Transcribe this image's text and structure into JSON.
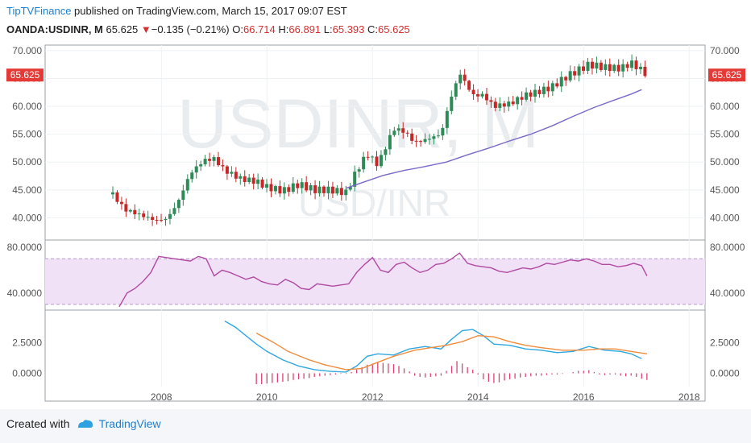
{
  "header": {
    "brand": "TipTVFinance",
    "published": " published on TradingView.com, March 15, 2017 09:07 EST",
    "symbol": "OANDA:USDINR, M",
    "price": "65.625",
    "arrow": "▼",
    "change": "−0.135 (−0.21%)",
    "o_label": "O:",
    "o_val": "66.714",
    "h_label": "H:",
    "h_val": "66.891",
    "l_label": "L:",
    "l_val": "65.393",
    "c_label": "C:",
    "c_val": "65.625"
  },
  "watermark": {
    "big": "USDINR, M",
    "small": "USD/INR"
  },
  "footer": {
    "created": "Created with",
    "brand": "TradingView"
  },
  "colors": {
    "up": "#2e8b57",
    "down": "#c62828",
    "ma": "#7b68c8",
    "rsi": "#b04aa0",
    "macd": "#2fa8e0",
    "signal": "#f08c3c",
    "hist": "#e04070",
    "price_tag": "#e53935"
  },
  "chart_data": [
    {
      "type": "candlestick",
      "title": "",
      "ylim": [
        36.0,
        71.0
      ],
      "y_ticks": [
        "70.000",
        "65.000",
        "60.000",
        "55.000",
        "50.000",
        "45.000",
        "40.000"
      ],
      "y_tick_values": [
        70,
        65,
        60,
        55,
        50,
        45,
        40
      ],
      "x_ticks": [
        "2008",
        "2010",
        "2012",
        "2014",
        "2016",
        "2018"
      ],
      "x_tick_values": [
        2008,
        2010,
        2012,
        2014,
        2016,
        2018
      ],
      "last_price_label": "65.625",
      "last_price": 65.625,
      "candle_anchors": [
        [
          2007.08,
          44.2
        ],
        [
          2007.3,
          41.5
        ],
        [
          2007.6,
          40.5
        ],
        [
          2007.9,
          39.5
        ],
        [
          2008.1,
          39.8
        ],
        [
          2008.3,
          42.5
        ],
        [
          2008.55,
          48
        ],
        [
          2008.8,
          50.3
        ],
        [
          2009.0,
          50.6
        ],
        [
          2009.2,
          48.5
        ],
        [
          2009.5,
          47.0
        ],
        [
          2009.8,
          46.5
        ],
        [
          2010.0,
          45.5
        ],
        [
          2010.3,
          44.8
        ],
        [
          2010.6,
          46.0
        ],
        [
          2010.9,
          45.0
        ],
        [
          2011.2,
          45.0
        ],
        [
          2011.5,
          44.5
        ],
        [
          2011.7,
          48.5
        ],
        [
          2011.9,
          51.5
        ],
        [
          2012.1,
          49.5
        ],
        [
          2012.4,
          56.0
        ],
        [
          2012.6,
          55.5
        ],
        [
          2012.8,
          53.5
        ],
        [
          2013.0,
          54.0
        ],
        [
          2013.3,
          55.0
        ],
        [
          2013.45,
          60.5
        ],
        [
          2013.65,
          66.0
        ],
        [
          2013.9,
          62.0
        ],
        [
          2014.1,
          62.0
        ],
        [
          2014.3,
          60.0
        ],
        [
          2014.6,
          60.5
        ],
        [
          2014.9,
          62.0
        ],
        [
          2015.1,
          62.5
        ],
        [
          2015.4,
          63.5
        ],
        [
          2015.7,
          65.5
        ],
        [
          2015.9,
          66.5
        ],
        [
          2016.1,
          67.5
        ],
        [
          2016.4,
          67.0
        ],
        [
          2016.7,
          66.8
        ],
        [
          2016.9,
          67.8
        ],
        [
          2017.1,
          66.5
        ],
        [
          2017.2,
          65.6
        ]
      ],
      "ma_series": {
        "name": "",
        "x": [
          2011.5,
          2011.8,
          2012.2,
          2012.6,
          2013.0,
          2013.4,
          2013.8,
          2014.2,
          2014.6,
          2015.0,
          2015.4,
          2015.8,
          2016.2,
          2016.6,
          2016.9,
          2017.1
        ],
        "y": [
          45.3,
          46.3,
          47.6,
          48.5,
          49.2,
          50.0,
          51.3,
          52.5,
          53.8,
          55.0,
          56.5,
          58.2,
          59.8,
          61.2,
          62.2,
          63.0
        ]
      }
    },
    {
      "type": "line",
      "title": "",
      "ylim": [
        25,
        85
      ],
      "y_ticks": [
        "80.0000",
        "40.0000"
      ],
      "y_tick_values": [
        80,
        40
      ],
      "band": [
        30,
        70
      ],
      "series": [
        {
          "name": "",
          "x": [
            2007.2,
            2007.35,
            2007.5,
            2007.65,
            2007.8,
            2007.95,
            2008.1,
            2008.25,
            2008.4,
            2008.55,
            2008.7,
            2008.85,
            2009.0,
            2009.15,
            2009.3,
            2009.45,
            2009.6,
            2009.75,
            2009.9,
            2010.05,
            2010.2,
            2010.35,
            2010.5,
            2010.65,
            2010.8,
            2010.95,
            2011.1,
            2011.25,
            2011.4,
            2011.55,
            2011.7,
            2011.85,
            2012.0,
            2012.15,
            2012.3,
            2012.45,
            2012.6,
            2012.75,
            2012.9,
            2013.05,
            2013.2,
            2013.35,
            2013.5,
            2013.65,
            2013.8,
            2013.95,
            2014.1,
            2014.25,
            2014.4,
            2014.55,
            2014.7,
            2014.85,
            2015.0,
            2015.15,
            2015.3,
            2015.45,
            2015.6,
            2015.75,
            2015.9,
            2016.05,
            2016.2,
            2016.35,
            2016.5,
            2016.65,
            2016.8,
            2016.95,
            2017.1,
            2017.2
          ],
          "y": [
            28,
            40,
            44,
            50,
            58,
            72,
            71,
            70,
            69,
            68,
            72,
            70,
            55,
            60,
            58,
            55,
            52,
            54,
            50,
            48,
            47,
            52,
            49,
            44,
            43,
            48,
            47,
            46,
            47,
            48,
            58,
            65,
            71,
            60,
            58,
            65,
            67,
            62,
            58,
            60,
            65,
            66,
            70,
            75,
            66,
            64,
            63,
            62,
            59,
            58,
            60,
            62,
            61,
            63,
            66,
            65,
            67,
            69,
            68,
            70,
            68,
            65,
            65,
            63,
            64,
            66,
            64,
            55
          ]
        }
      ]
    },
    {
      "type": "line",
      "title": "",
      "ylim": [
        -1.1,
        5.0
      ],
      "y_ticks": [
        "2.5000",
        "0.0000"
      ],
      "y_tick_values": [
        2.5,
        0.0
      ],
      "series": [
        {
          "name": "",
          "x": [
            2009.2,
            2009.4,
            2009.6,
            2009.8,
            2010.0,
            2010.3,
            2010.6,
            2010.9,
            2011.2,
            2011.5,
            2011.7,
            2011.9,
            2012.1,
            2012.4,
            2012.7,
            2013.0,
            2013.3,
            2013.5,
            2013.7,
            2013.9,
            2014.1,
            2014.3,
            2014.6,
            2014.9,
            2015.2,
            2015.5,
            2015.8,
            2016.1,
            2016.4,
            2016.7,
            2016.9,
            2017.1
          ],
          "y": [
            4.3,
            3.8,
            3.1,
            2.4,
            1.8,
            1.1,
            0.6,
            0.3,
            0.15,
            0.1,
            0.6,
            1.4,
            1.6,
            1.5,
            2.0,
            2.2,
            2.0,
            2.8,
            3.5,
            3.6,
            3.1,
            2.4,
            2.3,
            2.0,
            1.9,
            1.7,
            1.8,
            2.2,
            1.9,
            1.8,
            1.6,
            1.2
          ]
        },
        {
          "name": "",
          "x": [
            2009.8,
            2010.1,
            2010.4,
            2010.8,
            2011.1,
            2011.5,
            2011.8,
            2012.1,
            2012.4,
            2012.8,
            2013.1,
            2013.4,
            2013.7,
            2014.0,
            2014.3,
            2014.6,
            2014.9,
            2015.2,
            2015.6,
            2016.0,
            2016.3,
            2016.6,
            2016.9,
            2017.2
          ],
          "y": [
            3.3,
            2.6,
            1.8,
            1.1,
            0.7,
            0.3,
            0.4,
            0.9,
            1.4,
            1.9,
            2.1,
            2.3,
            2.6,
            3.1,
            3.0,
            2.6,
            2.3,
            2.1,
            1.9,
            1.9,
            2.0,
            2.0,
            1.8,
            1.6
          ]
        }
      ],
      "histogram": {
        "x": [
          2009.8,
          2009.9,
          2010.0,
          2010.1,
          2010.2,
          2010.3,
          2010.4,
          2010.5,
          2010.6,
          2010.7,
          2010.8,
          2010.9,
          2011.0,
          2011.1,
          2011.2,
          2011.3,
          2011.4,
          2011.5,
          2011.6,
          2011.7,
          2011.8,
          2011.9,
          2012.0,
          2012.1,
          2012.2,
          2012.3,
          2012.4,
          2012.5,
          2012.6,
          2012.7,
          2012.8,
          2012.9,
          2013.0,
          2013.1,
          2013.2,
          2013.3,
          2013.4,
          2013.5,
          2013.6,
          2013.7,
          2013.8,
          2013.9,
          2014.0,
          2014.1,
          2014.2,
          2014.3,
          2014.4,
          2014.5,
          2014.6,
          2014.7,
          2014.8,
          2014.9,
          2015.0,
          2015.1,
          2015.2,
          2015.3,
          2015.4,
          2015.5,
          2015.6,
          2015.7,
          2015.8,
          2015.9,
          2016.0,
          2016.1,
          2016.2,
          2016.3,
          2016.4,
          2016.5,
          2016.6,
          2016.7,
          2016.8,
          2016.9,
          2017.0,
          2017.1,
          2017.2
        ],
        "y": [
          -0.9,
          -0.9,
          -0.85,
          -0.8,
          -0.75,
          -0.7,
          -0.65,
          -0.55,
          -0.5,
          -0.45,
          -0.4,
          -0.3,
          -0.25,
          -0.2,
          -0.15,
          -0.1,
          -0.05,
          -0.05,
          0.1,
          0.3,
          0.5,
          0.7,
          0.8,
          0.9,
          0.85,
          0.8,
          0.75,
          0.6,
          0.4,
          0.15,
          -0.2,
          -0.3,
          -0.35,
          -0.3,
          -0.25,
          -0.2,
          0.2,
          0.6,
          1.0,
          0.8,
          0.5,
          0.3,
          -0.1,
          -0.5,
          -0.7,
          -0.8,
          -0.75,
          -0.6,
          -0.5,
          -0.45,
          -0.35,
          -0.3,
          -0.25,
          -0.2,
          -0.2,
          -0.15,
          -0.1,
          -0.1,
          -0.05,
          0.0,
          0.1,
          0.2,
          0.2,
          0.25,
          0.1,
          -0.1,
          -0.15,
          -0.1,
          -0.1,
          -0.2,
          -0.25,
          -0.2,
          -0.3,
          -0.45,
          -0.55
        ]
      }
    }
  ]
}
